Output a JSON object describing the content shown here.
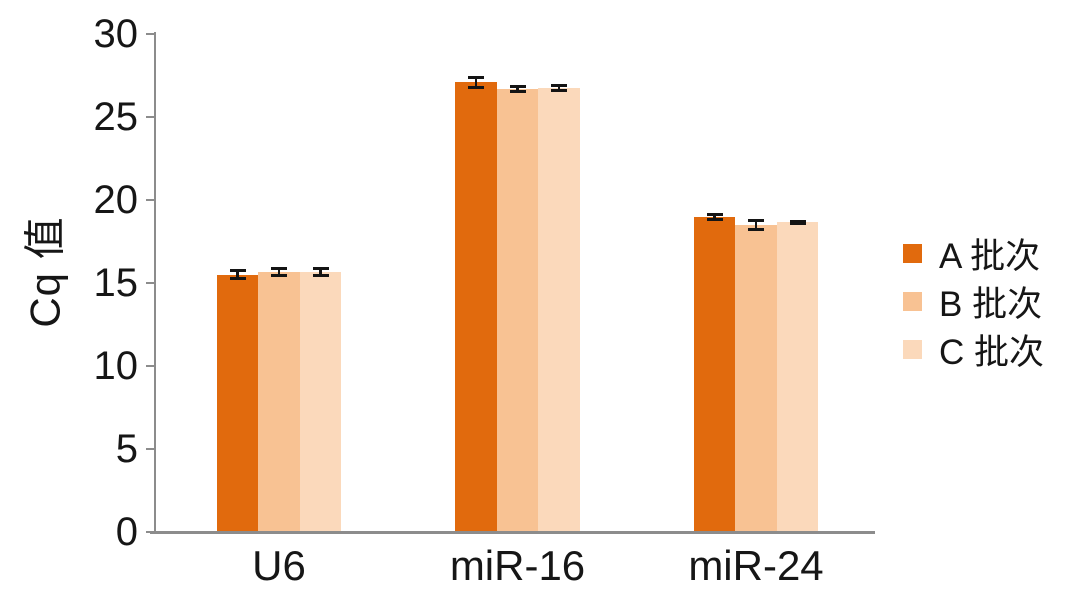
{
  "chart_data": {
    "type": "bar",
    "title": "",
    "ylabel": "Cq 值",
    "xlabel": "",
    "categories": [
      "U6",
      "miR-16",
      "miR-24"
    ],
    "series": [
      {
        "name": "A 批次",
        "color": "#E16A0D",
        "values": [
          15.5,
          27.1,
          19.0
        ],
        "errors": [
          0.25,
          0.3,
          0.15
        ]
      },
      {
        "name": "B 批次",
        "color": "#F8C293",
        "values": [
          15.65,
          26.7,
          18.5
        ],
        "errors": [
          0.2,
          0.15,
          0.25
        ]
      },
      {
        "name": "C 批次",
        "color": "#FBD9BB",
        "values": [
          15.65,
          26.75,
          18.65
        ],
        "errors": [
          0.2,
          0.15,
          0.05
        ]
      }
    ],
    "ylim": [
      0,
      30
    ],
    "yticks": [
      30,
      25,
      20,
      15,
      10,
      5,
      0
    ],
    "grid": false,
    "legend_position": "right",
    "colors": {
      "axis": "#8C8C8C",
      "error_bar": "#141414",
      "text": "#161616",
      "background": "#FFFFFF"
    }
  }
}
